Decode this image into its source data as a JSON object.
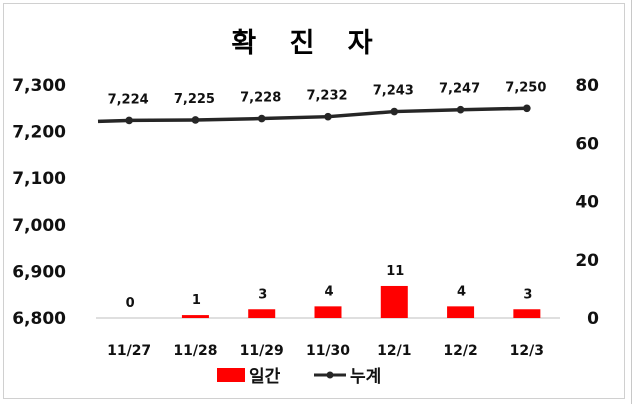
{
  "chart_data": {
    "type": "bar",
    "title": "확 진 자",
    "categories": [
      "11/27",
      "11/28",
      "11/29",
      "11/30",
      "12/1",
      "12/2",
      "12/3"
    ],
    "series": [
      {
        "name": "일간",
        "type": "bar",
        "axis": "right",
        "color": "#ff0000",
        "values": [
          0,
          1,
          3,
          4,
          11,
          4,
          3
        ]
      },
      {
        "name": "누계",
        "type": "line",
        "axis": "left",
        "color": "#262626",
        "values": [
          7224,
          7225,
          7228,
          7232,
          7243,
          7247,
          7250
        ]
      }
    ],
    "data_labels": {
      "bar": [
        "0",
        "1",
        "3",
        "4",
        "11",
        "4",
        "3"
      ],
      "line": [
        "7,224",
        "7,225",
        "7,228",
        "7,232",
        "7,243",
        "7,247",
        "7,250"
      ]
    },
    "y_left": {
      "ylim": [
        6800,
        7300
      ],
      "ticks": [
        6800,
        6900,
        7000,
        7100,
        7200,
        7300
      ],
      "tick_labels": [
        "6,800",
        "6,900",
        "7,000",
        "7,100",
        "7,200",
        "7,300"
      ]
    },
    "y_right": {
      "ylim": [
        0,
        80
      ],
      "ticks": [
        0,
        20,
        40,
        60,
        80
      ],
      "tick_labels": [
        "0",
        "20",
        "40",
        "60",
        "80"
      ]
    },
    "xlabel": "",
    "ylabel": "",
    "grid": false,
    "legend": "bottom"
  }
}
